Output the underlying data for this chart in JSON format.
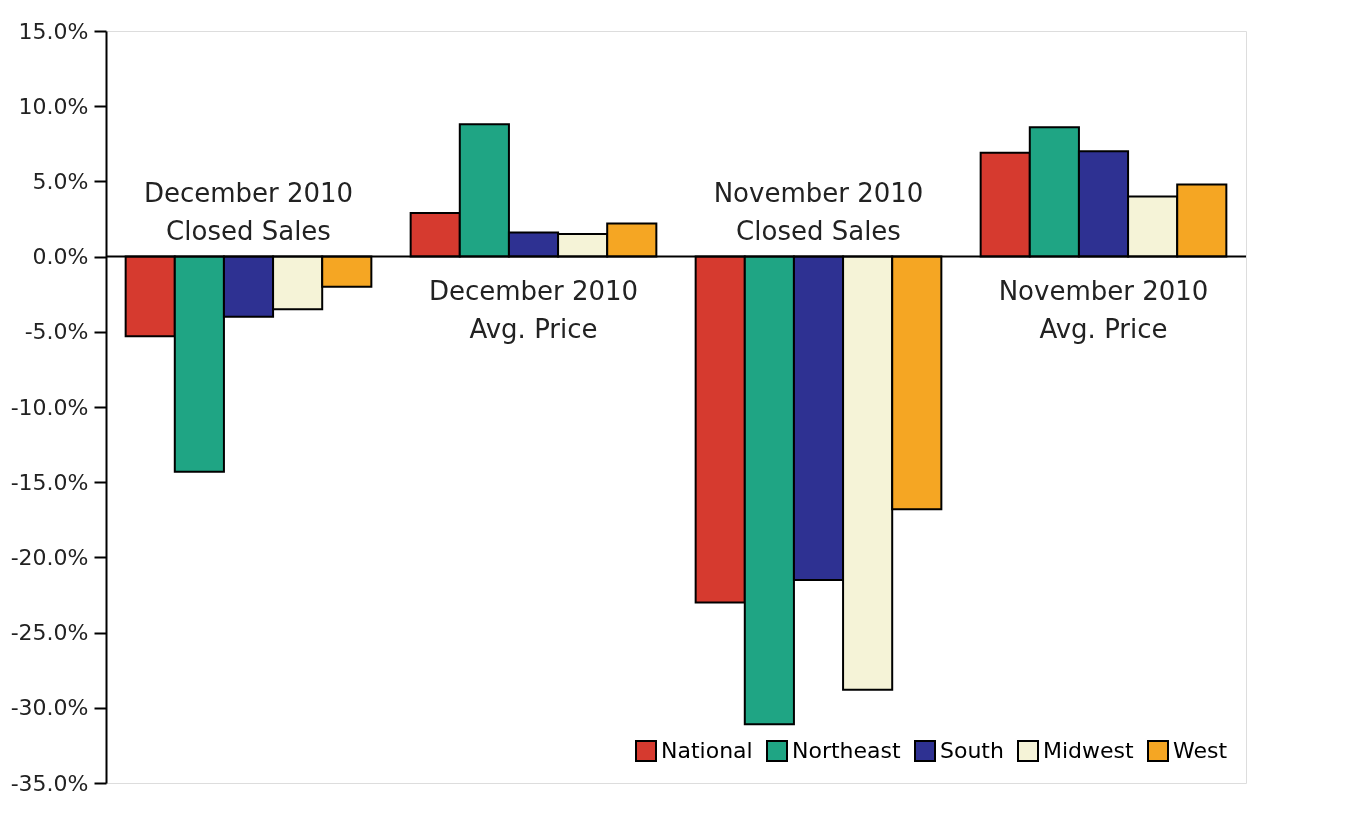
{
  "chart_data": {
    "type": "bar",
    "categories": [
      "December 2010\nClosed Sales",
      "December 2010\nAvg. Price",
      "November 2010\nClosed Sales",
      "November 2010\nAvg. Price"
    ],
    "series": [
      {
        "name": "National",
        "color": "#d63a2f",
        "values": [
          -5.3,
          2.9,
          -23.0,
          6.9
        ]
      },
      {
        "name": "Northeast",
        "color": "#1fa584",
        "values": [
          -14.3,
          8.8,
          -31.1,
          8.6
        ]
      },
      {
        "name": "South",
        "color": "#2e3192",
        "values": [
          -4.0,
          1.6,
          -21.5,
          7.0
        ]
      },
      {
        "name": "Midwest",
        "color": "#f5f3d7",
        "values": [
          -3.5,
          1.5,
          -28.8,
          4.0
        ]
      },
      {
        "name": "West",
        "color": "#f5a623",
        "values": [
          -2.0,
          2.2,
          -16.8,
          4.8
        ]
      }
    ],
    "ylim": [
      -35,
      15
    ],
    "yticks": [
      {
        "value": -35,
        "label": "-35.0%"
      },
      {
        "value": -30,
        "label": "-30.0%"
      },
      {
        "value": -25,
        "label": "-25.0%"
      },
      {
        "value": -20,
        "label": "-20.0%"
      },
      {
        "value": -15,
        "label": "-15.0%"
      },
      {
        "value": -10,
        "label": "-10.0%"
      },
      {
        "value": -5,
        "label": "-5.0%"
      },
      {
        "value": 0,
        "label": "0.0%"
      },
      {
        "value": 5,
        "label": "5.0%"
      },
      {
        "value": 10,
        "label": "10.0%"
      },
      {
        "value": 15,
        "label": "15.0%"
      }
    ],
    "grid": false,
    "legend": "bottom right"
  }
}
